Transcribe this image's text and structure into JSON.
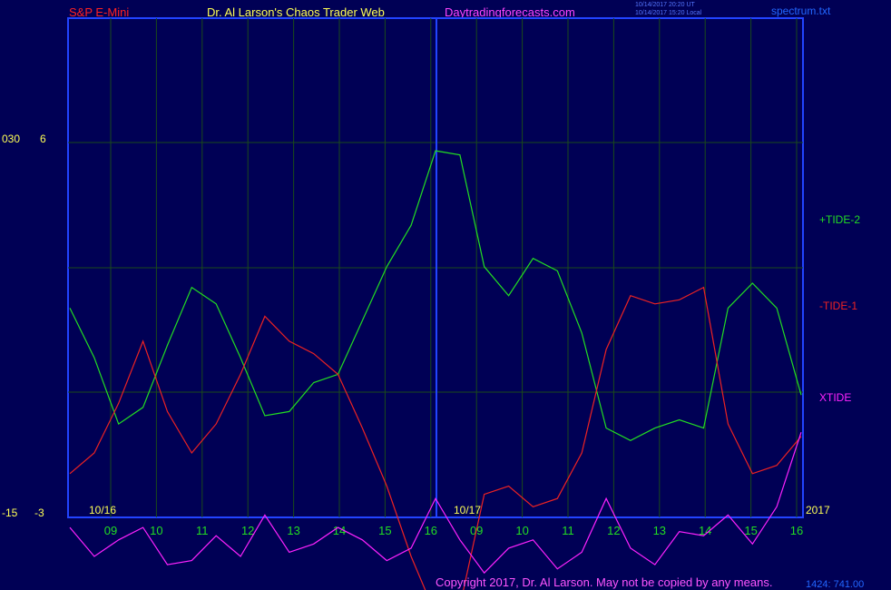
{
  "header": {
    "symbol": "S&P E-Mini",
    "author": "Dr. Al Larson's Chaos Trader Web",
    "site": "Daytradingforecasts.com",
    "stamp_ut": "10/14/2017 20:20 UT",
    "stamp_local": "10/14/2017 15:20 Local",
    "file": "spectrum.txt"
  },
  "axis_left": {
    "top_a": "030",
    "top_b": "6",
    "bottom_a": "-15",
    "bottom_b": "-3"
  },
  "chart_data": {
    "type": "line",
    "x_tick_labels": [
      "09",
      "10",
      "11",
      "12",
      "13",
      "14",
      "15",
      "16",
      "09",
      "10",
      "11",
      "12",
      "13",
      "14",
      "15",
      "16"
    ],
    "date_labels": [
      "10/16",
      "10/17"
    ],
    "year_label": "2017",
    "series": [
      {
        "name": "+TIDE-2",
        "color": "#22dd22",
        "values": [
          2.0,
          0.8,
          -0.8,
          -0.4,
          1.1,
          2.5,
          2.1,
          0.8,
          -0.6,
          -0.5,
          0.2,
          0.4,
          1.7,
          3.0,
          4.0,
          5.8,
          5.7,
          3.0,
          2.3,
          3.2,
          2.9,
          1.4,
          -0.9,
          -1.2,
          -0.9,
          -0.7,
          -0.9,
          2.0,
          2.6,
          2.0,
          -0.1
        ]
      },
      {
        "name": "-TIDE-1",
        "color": "#ee2222",
        "values": [
          -2.0,
          -1.5,
          -0.3,
          1.2,
          -0.5,
          -1.5,
          -0.8,
          0.4,
          1.8,
          1.2,
          0.9,
          0.4,
          -0.9,
          -2.3,
          -4.0,
          -5.4,
          -5.2,
          -2.5,
          -2.3,
          -2.8,
          -2.6,
          -1.5,
          1.0,
          2.3,
          2.1,
          2.2,
          2.5,
          -0.8,
          -2.0,
          -1.8,
          -1.1
        ]
      },
      {
        "name": "XTIDE",
        "color": "#ff22ff",
        "values": [
          -3.3,
          -4.0,
          -3.6,
          -3.3,
          -4.2,
          -4.1,
          -3.5,
          -4.0,
          -3.0,
          -3.9,
          -3.7,
          -3.3,
          -3.6,
          -4.1,
          -3.8,
          -2.6,
          -3.6,
          -4.4,
          -3.8,
          -3.6,
          -4.3,
          -3.9,
          -2.6,
          -3.8,
          -4.2,
          -3.4,
          -3.5,
          -3.0,
          -3.7,
          -2.8,
          -1.0
        ]
      }
    ],
    "right_labels": [
      "+TIDE-2",
      "-TIDE-1",
      "XTIDE"
    ],
    "grid": true
  },
  "footer": {
    "copyright": "Copyright 2017, Dr. Al Larson. May not be copied by any means.",
    "coords": "1424: 741.00"
  }
}
